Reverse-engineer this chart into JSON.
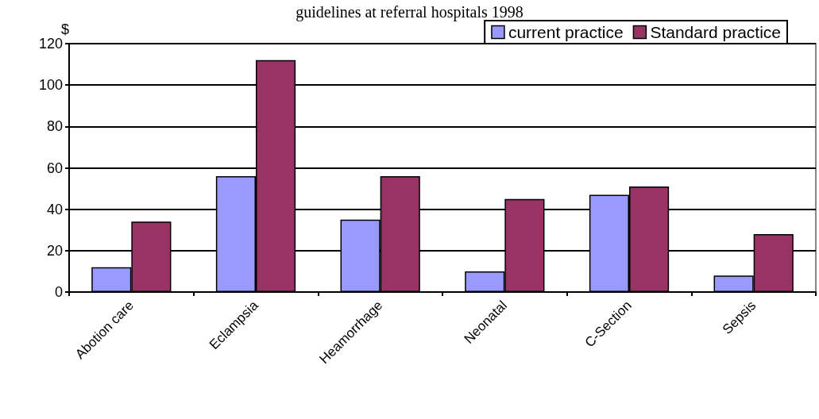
{
  "chart_data": {
    "type": "bar",
    "title": "guidelines at referral hospitals 1998",
    "ylabel": "$",
    "categories": [
      "Abotion care",
      "Eclampsia",
      "Heamorrhage",
      "Neonatal",
      "C-Section",
      "Sepsis"
    ],
    "series": [
      {
        "name": "current practice",
        "color": "#9999ff",
        "values": [
          12,
          56,
          35,
          10,
          47,
          8
        ]
      },
      {
        "name": "Standard practice",
        "color": "#993366",
        "values": [
          34,
          112,
          56,
          45,
          51,
          28
        ]
      }
    ],
    "ylim": [
      0,
      120
    ],
    "yticks": [
      0,
      20,
      40,
      60,
      80,
      100,
      120
    ],
    "grid": "y",
    "legend": "top right"
  }
}
